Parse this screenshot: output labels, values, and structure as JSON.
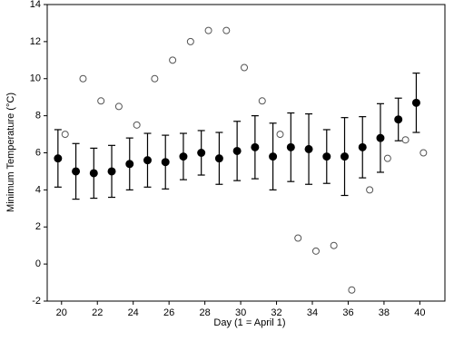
{
  "chart_data": {
    "type": "scatter",
    "x_label": "Day (1 = April 1)",
    "y_label": "Minimum Temperature (°C)",
    "xlim": [
      19.2,
      41.4
    ],
    "xticks": [
      20,
      22,
      24,
      26,
      28,
      30,
      32,
      34,
      36,
      38,
      40
    ],
    "ylim": [
      -2,
      14
    ],
    "yticks": [
      -2,
      0,
      2,
      4,
      6,
      8,
      10,
      12,
      14
    ],
    "series": [
      {
        "color": "#000000",
        "marker": "filled",
        "x": [
          19.8,
          20.8,
          21.8,
          22.8,
          23.8,
          24.8,
          25.8,
          26.8,
          27.8,
          28.8,
          29.8,
          30.8,
          31.8,
          32.8,
          33.8,
          34.8,
          35.8,
          36.8,
          37.8,
          38.8,
          39.8
        ],
        "values": [
          5.7,
          5.0,
          4.9,
          5.0,
          5.4,
          5.6,
          5.5,
          5.8,
          6.0,
          5.7,
          6.1,
          6.3,
          5.8,
          6.3,
          6.2,
          5.8,
          5.8,
          6.3,
          6.8,
          7.8,
          8.7
        ],
        "errors": [
          1.55,
          1.5,
          1.35,
          1.4,
          1.4,
          1.45,
          1.45,
          1.25,
          1.2,
          1.4,
          1.6,
          1.7,
          1.8,
          1.85,
          1.9,
          1.45,
          2.1,
          1.65,
          1.85,
          1.15,
          1.6
        ]
      },
      {
        "color": "#555555",
        "marker": "open",
        "x": [
          20.2,
          21.2,
          22.2,
          23.2,
          24.2,
          25.2,
          26.2,
          27.2,
          28.2,
          29.2,
          30.2,
          31.2,
          32.2,
          33.2,
          34.2,
          35.2,
          36.2,
          37.2,
          38.2,
          39.2,
          40.2
        ],
        "values": [
          7.0,
          10.0,
          8.8,
          8.5,
          7.5,
          10.0,
          11.0,
          12.0,
          12.6,
          12.6,
          10.6,
          8.8,
          7.0,
          1.4,
          0.7,
          1.0,
          -1.4,
          4.0,
          5.7,
          6.7,
          6.0
        ]
      }
    ]
  }
}
